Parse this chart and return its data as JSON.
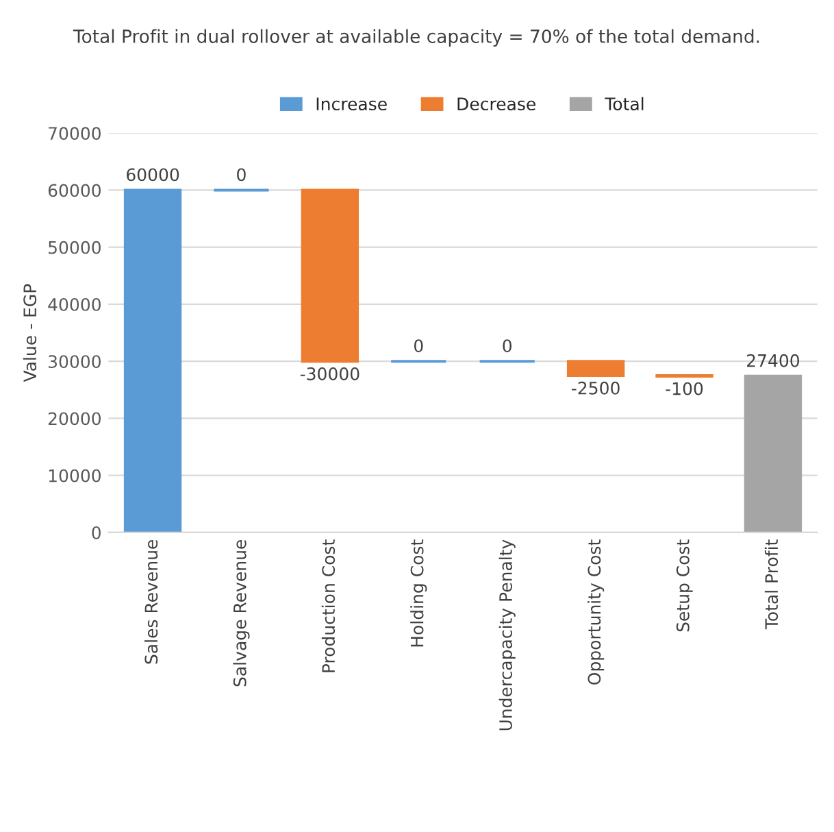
{
  "chart_data": {
    "type": "bar",
    "title": "Total Profit in dual rollover at available capacity = 70% of the total demand.",
    "ylabel": "Value - EGP",
    "categories": [
      "Sales Revenue",
      "Salvage Revenue",
      "Production Cost",
      "Holding Cost",
      "Undercapacity Penalty",
      "Opportunity Cost",
      "Setup Cost",
      "Total Profit"
    ],
    "series": [
      {
        "name": "Increase",
        "color": "#5b9bd5",
        "values": [
          60000,
          0,
          null,
          0,
          0,
          null,
          null,
          null
        ],
        "base": [
          0,
          60000,
          null,
          30000,
          30000,
          null,
          null,
          null
        ]
      },
      {
        "name": "Decrease",
        "color": "#ed7d31",
        "values": [
          null,
          null,
          -30000,
          null,
          null,
          -2500,
          -100,
          null
        ],
        "base": [
          null,
          null,
          60000,
          null,
          null,
          30000,
          27500,
          null
        ]
      },
      {
        "name": "Total",
        "color": "#a5a5a5",
        "values": [
          null,
          null,
          null,
          null,
          null,
          null,
          null,
          27400
        ],
        "base": [
          null,
          null,
          null,
          null,
          null,
          null,
          null,
          0
        ]
      }
    ],
    "ylim": [
      0,
      70000
    ],
    "yticks": [
      0,
      10000,
      20000,
      30000,
      40000,
      50000,
      60000,
      70000
    ],
    "grid": "y",
    "legend": "top",
    "data_labels": true
  }
}
